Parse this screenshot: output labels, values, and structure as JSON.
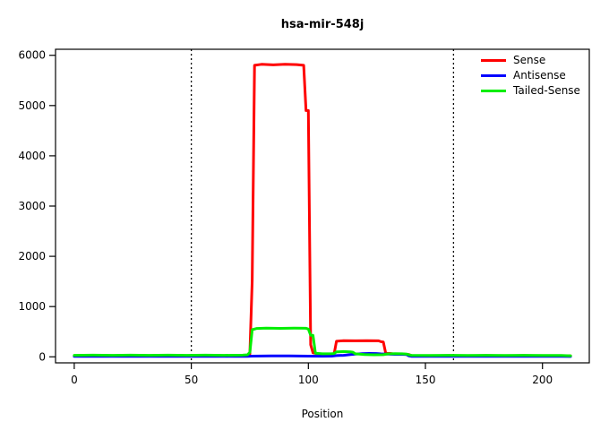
{
  "title": "hsa-mir-548j",
  "chart_data": {
    "type": "line",
    "title": "hsa-mir-548j",
    "xlabel": "Position",
    "ylabel": "",
    "xlim": [
      -8,
      220
    ],
    "ylim": [
      -120,
      6120
    ],
    "x_ticks": [
      0,
      50,
      100,
      150,
      200
    ],
    "y_ticks": [
      0,
      1000,
      2000,
      3000,
      4000,
      5000,
      6000
    ],
    "grid": false,
    "legend_position": "top-right",
    "vlines": {
      "positions": [
        50,
        162
      ],
      "style": "dotted",
      "color": "#000000"
    },
    "series": [
      {
        "name": "Sense",
        "color": "#ff0000",
        "points": [
          [
            0,
            20
          ],
          [
            8,
            25
          ],
          [
            16,
            20
          ],
          [
            24,
            25
          ],
          [
            32,
            20
          ],
          [
            40,
            25
          ],
          [
            48,
            20
          ],
          [
            56,
            25
          ],
          [
            64,
            20
          ],
          [
            72,
            25
          ],
          [
            74,
            30
          ],
          [
            75,
            60
          ],
          [
            76,
            1520
          ],
          [
            77,
            5800
          ],
          [
            80,
            5820
          ],
          [
            85,
            5810
          ],
          [
            90,
            5820
          ],
          [
            95,
            5815
          ],
          [
            98,
            5800
          ],
          [
            99,
            4900
          ],
          [
            100,
            4900
          ],
          [
            101,
            240
          ],
          [
            102,
            80
          ],
          [
            104,
            60
          ],
          [
            108,
            55
          ],
          [
            111,
            60
          ],
          [
            112,
            310
          ],
          [
            115,
            320
          ],
          [
            120,
            318
          ],
          [
            125,
            322
          ],
          [
            130,
            318
          ],
          [
            131,
            300
          ],
          [
            132,
            295
          ],
          [
            133,
            80
          ],
          [
            136,
            60
          ],
          [
            140,
            58
          ],
          [
            143,
            45
          ],
          [
            144,
            25
          ],
          [
            152,
            20
          ],
          [
            160,
            24
          ],
          [
            168,
            20
          ],
          [
            176,
            24
          ],
          [
            184,
            20
          ],
          [
            192,
            24
          ],
          [
            200,
            20
          ],
          [
            208,
            22
          ],
          [
            212,
            18
          ]
        ]
      },
      {
        "name": "Antisense",
        "color": "#0000ff",
        "points": [
          [
            0,
            8
          ],
          [
            16,
            10
          ],
          [
            32,
            8
          ],
          [
            48,
            10
          ],
          [
            64,
            8
          ],
          [
            74,
            10
          ],
          [
            76,
            14
          ],
          [
            84,
            17
          ],
          [
            92,
            17
          ],
          [
            100,
            14
          ],
          [
            106,
            12
          ],
          [
            110,
            14
          ],
          [
            112,
            24
          ],
          [
            115,
            30
          ],
          [
            118,
            44
          ],
          [
            120,
            54
          ],
          [
            123,
            62
          ],
          [
            126,
            68
          ],
          [
            129,
            66
          ],
          [
            131,
            58
          ],
          [
            134,
            54
          ],
          [
            137,
            50
          ],
          [
            140,
            50
          ],
          [
            142,
            44
          ],
          [
            143,
            18
          ],
          [
            144,
            10
          ],
          [
            152,
            8
          ],
          [
            160,
            10
          ],
          [
            168,
            8
          ],
          [
            176,
            10
          ],
          [
            184,
            8
          ],
          [
            192,
            10
          ],
          [
            200,
            8
          ],
          [
            208,
            8
          ],
          [
            212,
            6
          ]
        ]
      },
      {
        "name": "Tailed-Sense",
        "color": "#00ee00",
        "points": [
          [
            0,
            30
          ],
          [
            8,
            34
          ],
          [
            16,
            30
          ],
          [
            24,
            34
          ],
          [
            32,
            30
          ],
          [
            40,
            34
          ],
          [
            48,
            30
          ],
          [
            56,
            34
          ],
          [
            64,
            30
          ],
          [
            72,
            34
          ],
          [
            74,
            40
          ],
          [
            75,
            90
          ],
          [
            76,
            540
          ],
          [
            78,
            565
          ],
          [
            82,
            570
          ],
          [
            88,
            566
          ],
          [
            94,
            570
          ],
          [
            99,
            568
          ],
          [
            100,
            552
          ],
          [
            101,
            430
          ],
          [
            102,
            428
          ],
          [
            103,
            70
          ],
          [
            106,
            60
          ],
          [
            110,
            62
          ],
          [
            111,
            66
          ],
          [
            112,
            100
          ],
          [
            115,
            104
          ],
          [
            118,
            98
          ],
          [
            119,
            92
          ],
          [
            120,
            60
          ],
          [
            124,
            46
          ],
          [
            128,
            40
          ],
          [
            132,
            42
          ],
          [
            134,
            58
          ],
          [
            137,
            64
          ],
          [
            140,
            60
          ],
          [
            142,
            54
          ],
          [
            143,
            38
          ],
          [
            144,
            30
          ],
          [
            152,
            28
          ],
          [
            160,
            30
          ],
          [
            168,
            28
          ],
          [
            176,
            30
          ],
          [
            184,
            28
          ],
          [
            192,
            30
          ],
          [
            200,
            28
          ],
          [
            208,
            26
          ],
          [
            212,
            20
          ]
        ]
      }
    ]
  }
}
